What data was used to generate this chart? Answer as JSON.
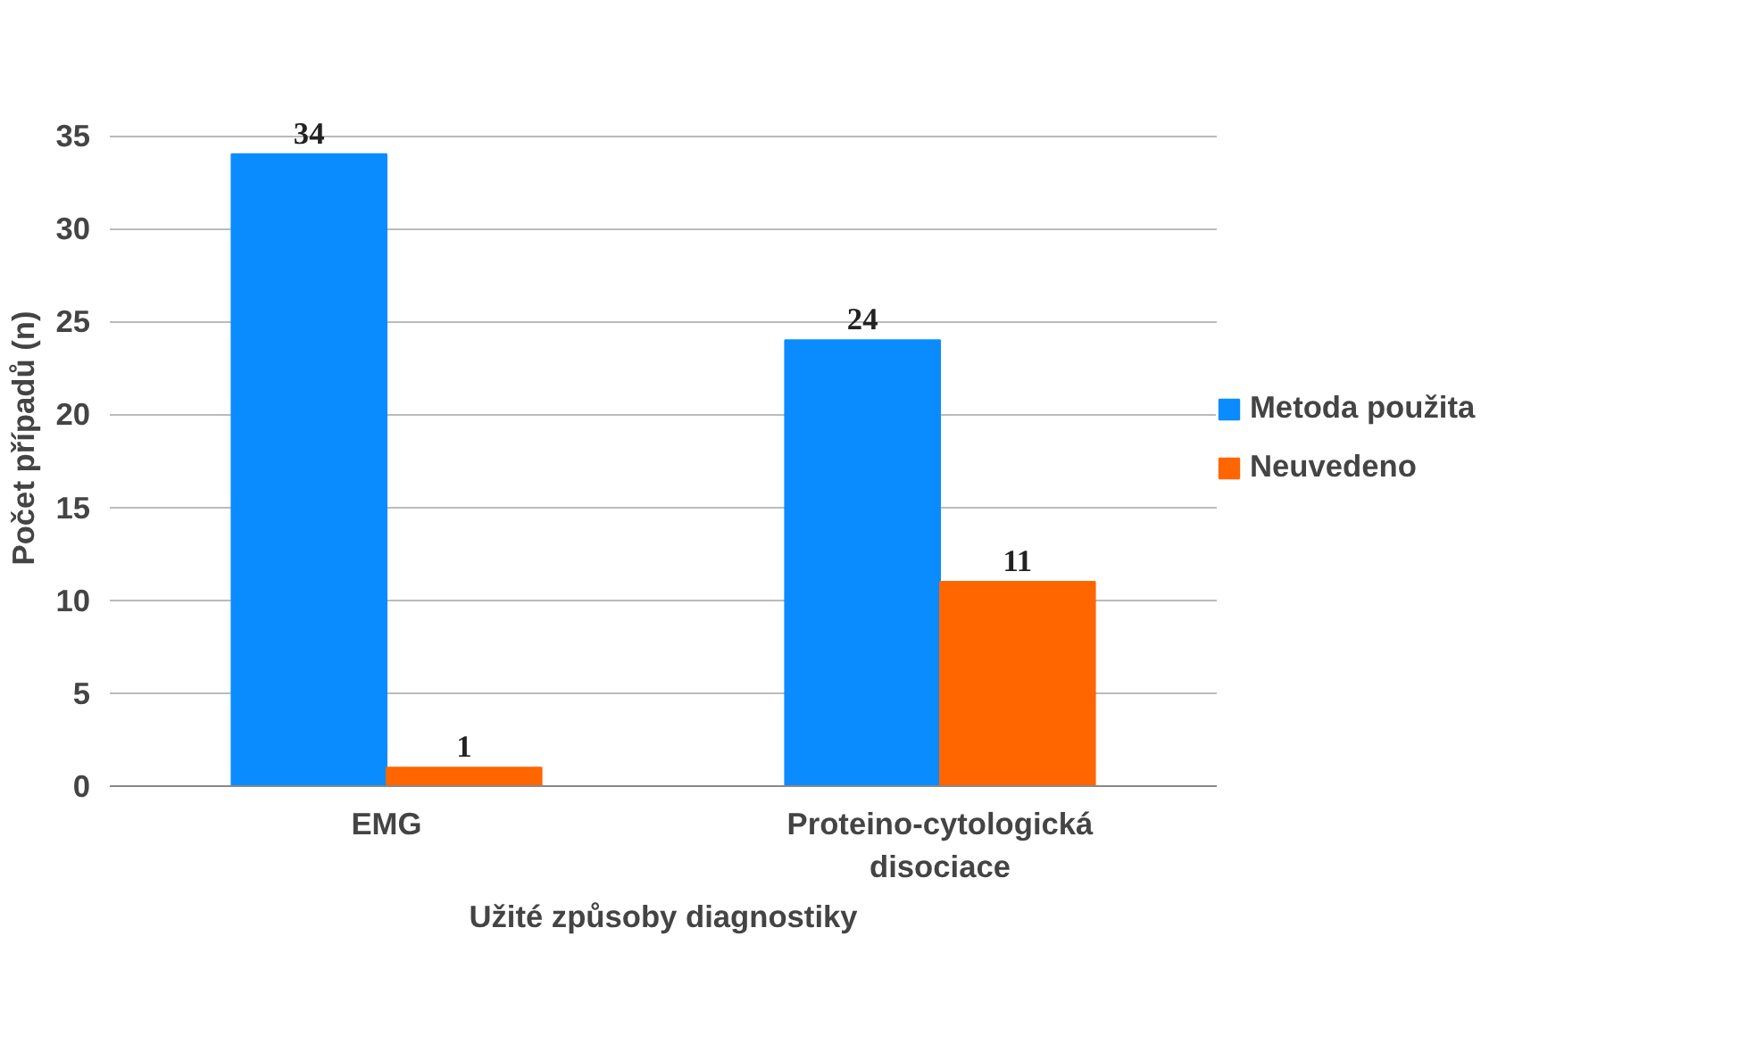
{
  "chart_data": {
    "type": "bar",
    "xlabel": "Užité způsoby diagnostiky",
    "ylabel": "Počet případů (n)",
    "categories": [
      "EMG",
      "Proteino-cytologická disociace"
    ],
    "series": [
      {
        "name": "Metoda použita",
        "color": "#0a8cff",
        "values": [
          34,
          24
        ]
      },
      {
        "name": "Neuvedeno",
        "color": "#ff6600",
        "values": [
          1,
          11
        ]
      }
    ],
    "ylim": [
      0,
      35
    ],
    "yticks": [
      0,
      5,
      10,
      15,
      20,
      25,
      30,
      35
    ],
    "grid": "y",
    "legend": "right",
    "data_labels": true
  }
}
